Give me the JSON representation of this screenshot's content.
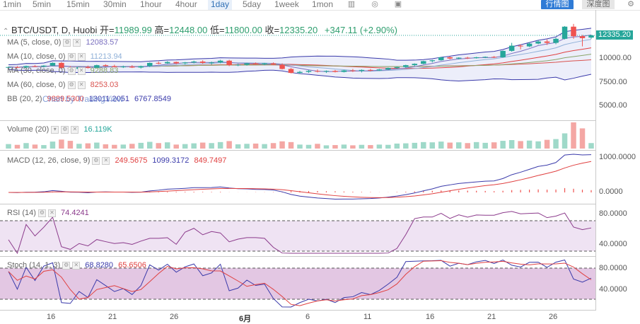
{
  "toolbar": {
    "timeframes": [
      "1min",
      "5min",
      "15min",
      "30min",
      "1hour",
      "4hour",
      "1day",
      "5day",
      "1week",
      "1mon"
    ],
    "active": "1day",
    "btn_chart": "行情图",
    "btn_depth": "深度图"
  },
  "header": {
    "symbol": "BTC/USDT, D, Huobi",
    "open_label": "开=",
    "open": "11989.99",
    "high_label": "高=",
    "high": "12448.00",
    "low_label": "低=",
    "low": "11800.00",
    "close_label": "收=",
    "close": "12335.20",
    "change": "+347.11 (+2.90%)"
  },
  "legends": {
    "ma5": {
      "label": "MA (5, close, 0)",
      "value": "12083.57"
    },
    "ma10": {
      "label": "MA (10, close, 0)",
      "value": "11213.94"
    },
    "ma30": {
      "label": "MA (30, close, 0)",
      "value": "9288.83"
    },
    "ma60": {
      "label": "MA (60, close, 0)",
      "value": "8253.03"
    },
    "bb": {
      "label": "BB (20, 2)",
      "v1": "9889.5300",
      "v2": "13011.2051",
      "v3": "6767.8549"
    },
    "watermark": "Chart by TradingView",
    "volume": {
      "label": "Volume (20)",
      "value": "16.119K"
    },
    "macd": {
      "label": "MACD (12, 26, close, 9)",
      "v1": "249.5675",
      "v2": "1099.3172",
      "v3": "849.7497"
    },
    "rsi": {
      "label": "RSI (14)",
      "value": "74.4241"
    },
    "stoch": {
      "label": "Stoch (14, 1, 3)",
      "v1": "68.8280",
      "v2": "65.6506"
    }
  },
  "axis": {
    "price_tag": "12335.20",
    "price_ticks": [
      "10000.00",
      "7500.00",
      "5000.00"
    ],
    "macd_ticks": [
      "1000.0000",
      "0.0000"
    ],
    "rsi_ticks": [
      "80.0000",
      "40.0000"
    ],
    "stoch_ticks": [
      "80.0000",
      "40.0000"
    ],
    "x_labels": [
      "16",
      "21",
      "26",
      "6月",
      "6",
      "11",
      "16",
      "21",
      "26"
    ]
  },
  "colors": {
    "up": "#26a69a",
    "down": "#ef5350",
    "accent": "#2f7bd6"
  },
  "chart_data": {
    "type": "candlestick",
    "title": "BTC/USDT, D, Huobi",
    "candles": [
      {
        "o": 8150,
        "h": 8250,
        "l": 8050,
        "c": 8200
      },
      {
        "o": 8200,
        "h": 8300,
        "l": 8100,
        "c": 8150
      },
      {
        "o": 8150,
        "h": 8350,
        "l": 8100,
        "c": 8300
      },
      {
        "o": 8300,
        "h": 8400,
        "l": 8200,
        "c": 8250
      },
      {
        "o": 8250,
        "h": 8400,
        "l": 8150,
        "c": 8350
      },
      {
        "o": 8350,
        "h": 8700,
        "l": 8300,
        "c": 8650
      },
      {
        "o": 8650,
        "h": 8750,
        "l": 8000,
        "c": 8100
      },
      {
        "o": 8100,
        "h": 8300,
        "l": 7900,
        "c": 8000
      },
      {
        "o": 8000,
        "h": 8250,
        "l": 7900,
        "c": 8200
      },
      {
        "o": 8200,
        "h": 8350,
        "l": 8050,
        "c": 8100
      },
      {
        "o": 8100,
        "h": 8450,
        "l": 8050,
        "c": 8400
      },
      {
        "o": 8400,
        "h": 8500,
        "l": 8250,
        "c": 8300
      },
      {
        "o": 8300,
        "h": 8450,
        "l": 8150,
        "c": 8200
      },
      {
        "o": 8200,
        "h": 8350,
        "l": 8100,
        "c": 8250
      },
      {
        "o": 8250,
        "h": 8400,
        "l": 8100,
        "c": 8150
      },
      {
        "o": 8150,
        "h": 8350,
        "l": 8050,
        "c": 8300
      },
      {
        "o": 8300,
        "h": 8700,
        "l": 8200,
        "c": 8650
      },
      {
        "o": 8650,
        "h": 8800,
        "l": 8500,
        "c": 8600
      },
      {
        "o": 8600,
        "h": 8850,
        "l": 8550,
        "c": 8750
      },
      {
        "o": 8750,
        "h": 8800,
        "l": 8500,
        "c": 8600
      },
      {
        "o": 8600,
        "h": 8750,
        "l": 8500,
        "c": 8700
      },
      {
        "o": 8700,
        "h": 8900,
        "l": 8600,
        "c": 8800
      },
      {
        "o": 8800,
        "h": 8950,
        "l": 8550,
        "c": 8650
      },
      {
        "o": 8650,
        "h": 8800,
        "l": 8450,
        "c": 8700
      },
      {
        "o": 8700,
        "h": 9000,
        "l": 8600,
        "c": 8900
      },
      {
        "o": 8900,
        "h": 9000,
        "l": 8300,
        "c": 8400
      },
      {
        "o": 8400,
        "h": 8550,
        "l": 8300,
        "c": 8450
      },
      {
        "o": 8450,
        "h": 8650,
        "l": 8350,
        "c": 8600
      },
      {
        "o": 8600,
        "h": 8700,
        "l": 8450,
        "c": 8500
      },
      {
        "o": 8500,
        "h": 8650,
        "l": 8400,
        "c": 8600
      },
      {
        "o": 8600,
        "h": 8700,
        "l": 8400,
        "c": 8450
      },
      {
        "o": 8450,
        "h": 8600,
        "l": 7950,
        "c": 8000
      },
      {
        "o": 8000,
        "h": 8100,
        "l": 7550,
        "c": 7600
      },
      {
        "o": 7600,
        "h": 7800,
        "l": 7500,
        "c": 7700
      },
      {
        "o": 7700,
        "h": 7900,
        "l": 7600,
        "c": 7800
      },
      {
        "o": 7800,
        "h": 7950,
        "l": 7650,
        "c": 7750
      },
      {
        "o": 7750,
        "h": 7850,
        "l": 7600,
        "c": 7800
      },
      {
        "o": 7800,
        "h": 7900,
        "l": 7650,
        "c": 7700
      },
      {
        "o": 7700,
        "h": 7900,
        "l": 7650,
        "c": 7850
      },
      {
        "o": 7850,
        "h": 8000,
        "l": 7700,
        "c": 7800
      },
      {
        "o": 7800,
        "h": 7950,
        "l": 7650,
        "c": 7900
      },
      {
        "o": 7900,
        "h": 8000,
        "l": 7750,
        "c": 7850
      },
      {
        "o": 7850,
        "h": 8000,
        "l": 7800,
        "c": 7950
      },
      {
        "o": 7950,
        "h": 8150,
        "l": 7900,
        "c": 8100
      },
      {
        "o": 8100,
        "h": 8250,
        "l": 8000,
        "c": 8200
      },
      {
        "o": 8200,
        "h": 8450,
        "l": 8100,
        "c": 8400
      },
      {
        "o": 8400,
        "h": 8600,
        "l": 8300,
        "c": 8550
      },
      {
        "o": 8550,
        "h": 8900,
        "l": 8500,
        "c": 8850
      },
      {
        "o": 8850,
        "h": 9000,
        "l": 8700,
        "c": 8950
      },
      {
        "o": 8950,
        "h": 9350,
        "l": 8900,
        "c": 9300
      },
      {
        "o": 9300,
        "h": 9400,
        "l": 9050,
        "c": 9150
      },
      {
        "o": 9150,
        "h": 9300,
        "l": 9050,
        "c": 9250
      },
      {
        "o": 9250,
        "h": 9350,
        "l": 9100,
        "c": 9200
      },
      {
        "o": 9200,
        "h": 9350,
        "l": 9150,
        "c": 9300
      },
      {
        "o": 9300,
        "h": 9400,
        "l": 9200,
        "c": 9350
      },
      {
        "o": 9350,
        "h": 9450,
        "l": 9200,
        "c": 9300
      },
      {
        "o": 9300,
        "h": 10150,
        "l": 9250,
        "c": 10100
      },
      {
        "o": 10100,
        "h": 11200,
        "l": 10000,
        "c": 10800
      },
      {
        "o": 10800,
        "h": 11000,
        "l": 10300,
        "c": 10700
      },
      {
        "o": 10700,
        "h": 11300,
        "l": 10600,
        "c": 11100
      },
      {
        "o": 11100,
        "h": 11600,
        "l": 11000,
        "c": 11400
      },
      {
        "o": 11400,
        "h": 11700,
        "l": 10900,
        "c": 11200
      },
      {
        "o": 11200,
        "h": 12000,
        "l": 11000,
        "c": 11800
      },
      {
        "o": 11800,
        "h": 13900,
        "l": 11700,
        "c": 13800
      },
      {
        "o": 13800,
        "h": 14300,
        "l": 11800,
        "c": 12200
      },
      {
        "o": 12200,
        "h": 12400,
        "l": 10700,
        "c": 11900
      },
      {
        "o": 11990,
        "h": 12448,
        "l": 11800,
        "c": 12335
      }
    ],
    "volume": [
      1.8,
      1.5,
      2.2,
      1.6,
      1.4,
      2.8,
      3.6,
      3.1,
      1.9,
      2.1,
      2.4,
      1.7,
      1.5,
      1.6,
      1.9,
      2.3,
      2.7,
      2.2,
      2.5,
      1.6,
      1.8,
      2.1,
      2.4,
      2.2,
      2.6,
      3.0,
      1.7,
      1.9,
      2.0,
      1.8,
      2.2,
      2.9,
      2.6,
      1.6,
      1.5,
      1.9,
      1.3,
      1.4,
      1.6,
      1.3,
      1.5,
      1.4,
      1.6,
      1.5,
      2.0,
      2.1,
      2.3,
      2.6,
      2.5,
      2.8,
      2.4,
      2.5,
      2.2,
      2.6,
      2.3,
      2.5,
      3.1,
      3.4,
      3.0,
      3.2,
      2.9,
      3.5,
      3.8,
      6.1,
      10.5,
      8.1,
      2.2
    ]
  }
}
